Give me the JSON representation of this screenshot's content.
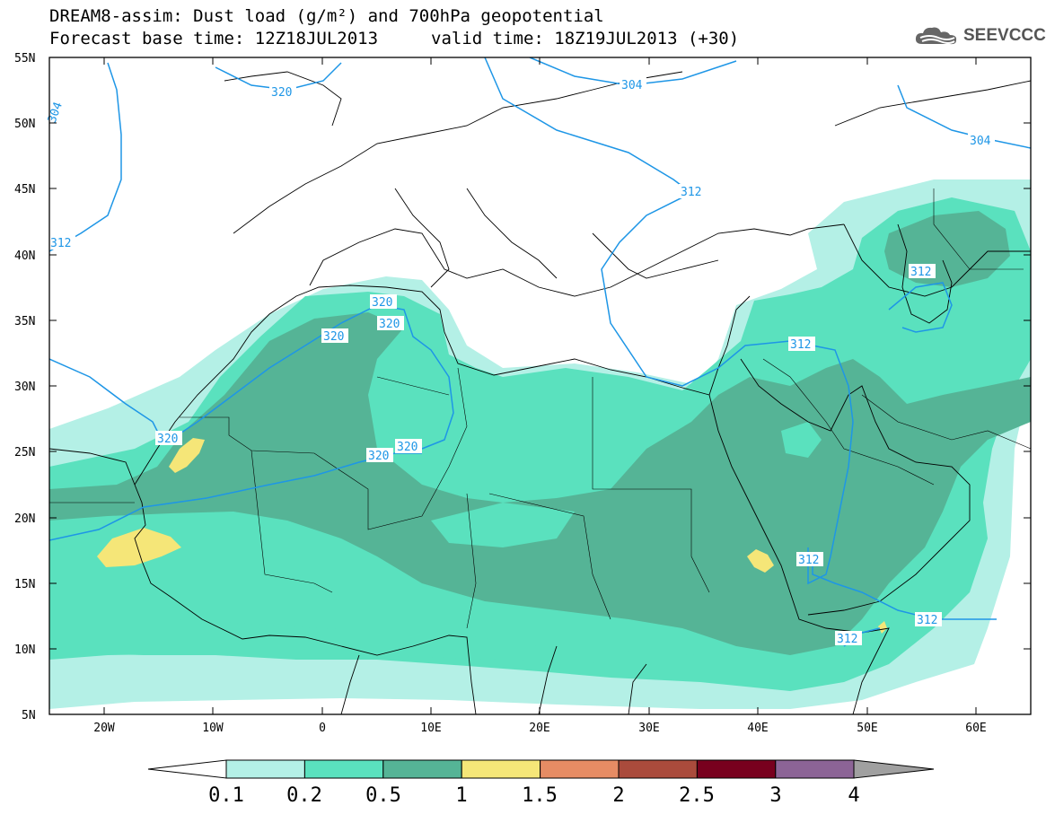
{
  "header": {
    "title_line1": "DREAM8-assim: Dust load (g/m²) and 700hPa geopotential",
    "title_line2_left": "Forecast base time: 12Z18JUL2013",
    "title_line2_right": "valid time: 18Z19JUL2013 (+30)",
    "logo_text": "SEEVCCC",
    "logo_icon": "cloud-icon"
  },
  "axes": {
    "y_ticks": [
      "55N",
      "50N",
      "45N",
      "40N",
      "35N",
      "30N",
      "25N",
      "20N",
      "15N",
      "10N",
      "5N"
    ],
    "x_ticks": [
      "20W",
      "10W",
      "0",
      "10E",
      "20E",
      "30E",
      "40E",
      "50E",
      "60E"
    ]
  },
  "contours": {
    "labels": [
      "320",
      "304",
      "304",
      "312",
      "312",
      "312",
      "320",
      "320",
      "320",
      "320",
      "320",
      "320",
      "312",
      "312",
      "312",
      "312",
      "304"
    ]
  },
  "colorbar": {
    "labels": [
      "0.1",
      "0.2",
      "0.5",
      "1",
      "1.5",
      "2",
      "2.5",
      "3",
      "4"
    ],
    "colors": [
      "#b4f0e6",
      "#5ae1be",
      "#55b496",
      "#f5e678",
      "#e68c64",
      "#aa4b3c",
      "#78001e",
      "#8c6496",
      "#a0a0a0"
    ]
  },
  "colors": {
    "dust_01": "#b4f0e6",
    "dust_02": "#5ae1be",
    "dust_05": "#55b496",
    "dust_1": "#f5e678",
    "contour": "#1e96e6",
    "coast": "#000000"
  }
}
